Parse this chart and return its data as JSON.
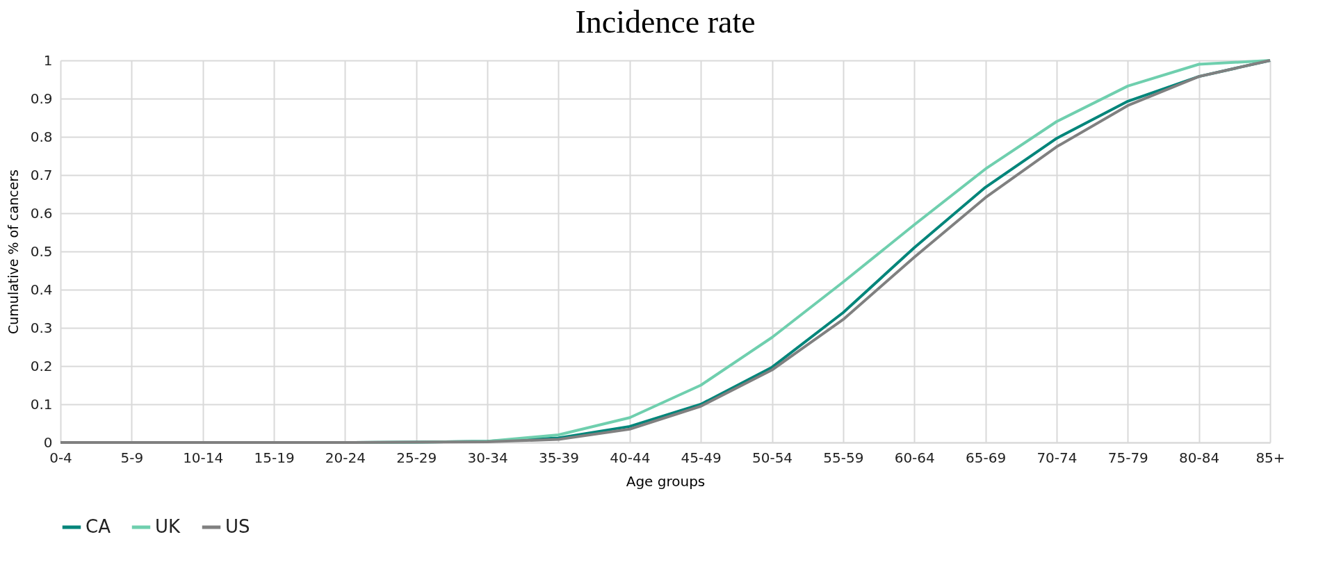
{
  "chart_data": {
    "type": "line",
    "title": "Incidence rate",
    "xlabel": "Age groups",
    "ylabel": "Cumulative % of cancers",
    "categories": [
      "0-4",
      "5-9",
      "10-14",
      "15-19",
      "20-24",
      "25-29",
      "30-34",
      "35-39",
      "40-44",
      "45-49",
      "50-54",
      "55-59",
      "60-64",
      "65-69",
      "70-74",
      "75-79",
      "80-84",
      "85+"
    ],
    "series": [
      {
        "name": "CA",
        "color": "#00857a",
        "values": [
          null,
          null,
          null,
          0,
          0,
          0.001,
          0.003,
          0.012,
          0.042,
          0.1,
          0.197,
          0.34,
          0.51,
          0.668,
          0.796,
          0.893,
          0.958,
          1
        ]
      },
      {
        "name": "UK",
        "color": "#6fcfae",
        "values": [
          null,
          null,
          null,
          0,
          0,
          0.001,
          0.003,
          0.02,
          0.065,
          0.15,
          0.275,
          0.42,
          0.57,
          0.716,
          0.84,
          0.933,
          0.99,
          1
        ]
      },
      {
        "name": "US",
        "color": "#808080",
        "values": [
          0,
          0,
          0,
          0,
          0,
          0.001,
          0.002,
          0.008,
          0.035,
          0.095,
          0.19,
          0.322,
          0.485,
          0.641,
          0.774,
          0.882,
          0.958,
          1
        ]
      }
    ],
    "ylim": [
      0,
      1
    ],
    "yticks": [
      0,
      0.1,
      0.2,
      0.3,
      0.4,
      0.5,
      0.6,
      0.7,
      0.8,
      0.9,
      1
    ],
    "grid": true,
    "legend": "bottom",
    "marker": "none",
    "line_style": "solid"
  }
}
